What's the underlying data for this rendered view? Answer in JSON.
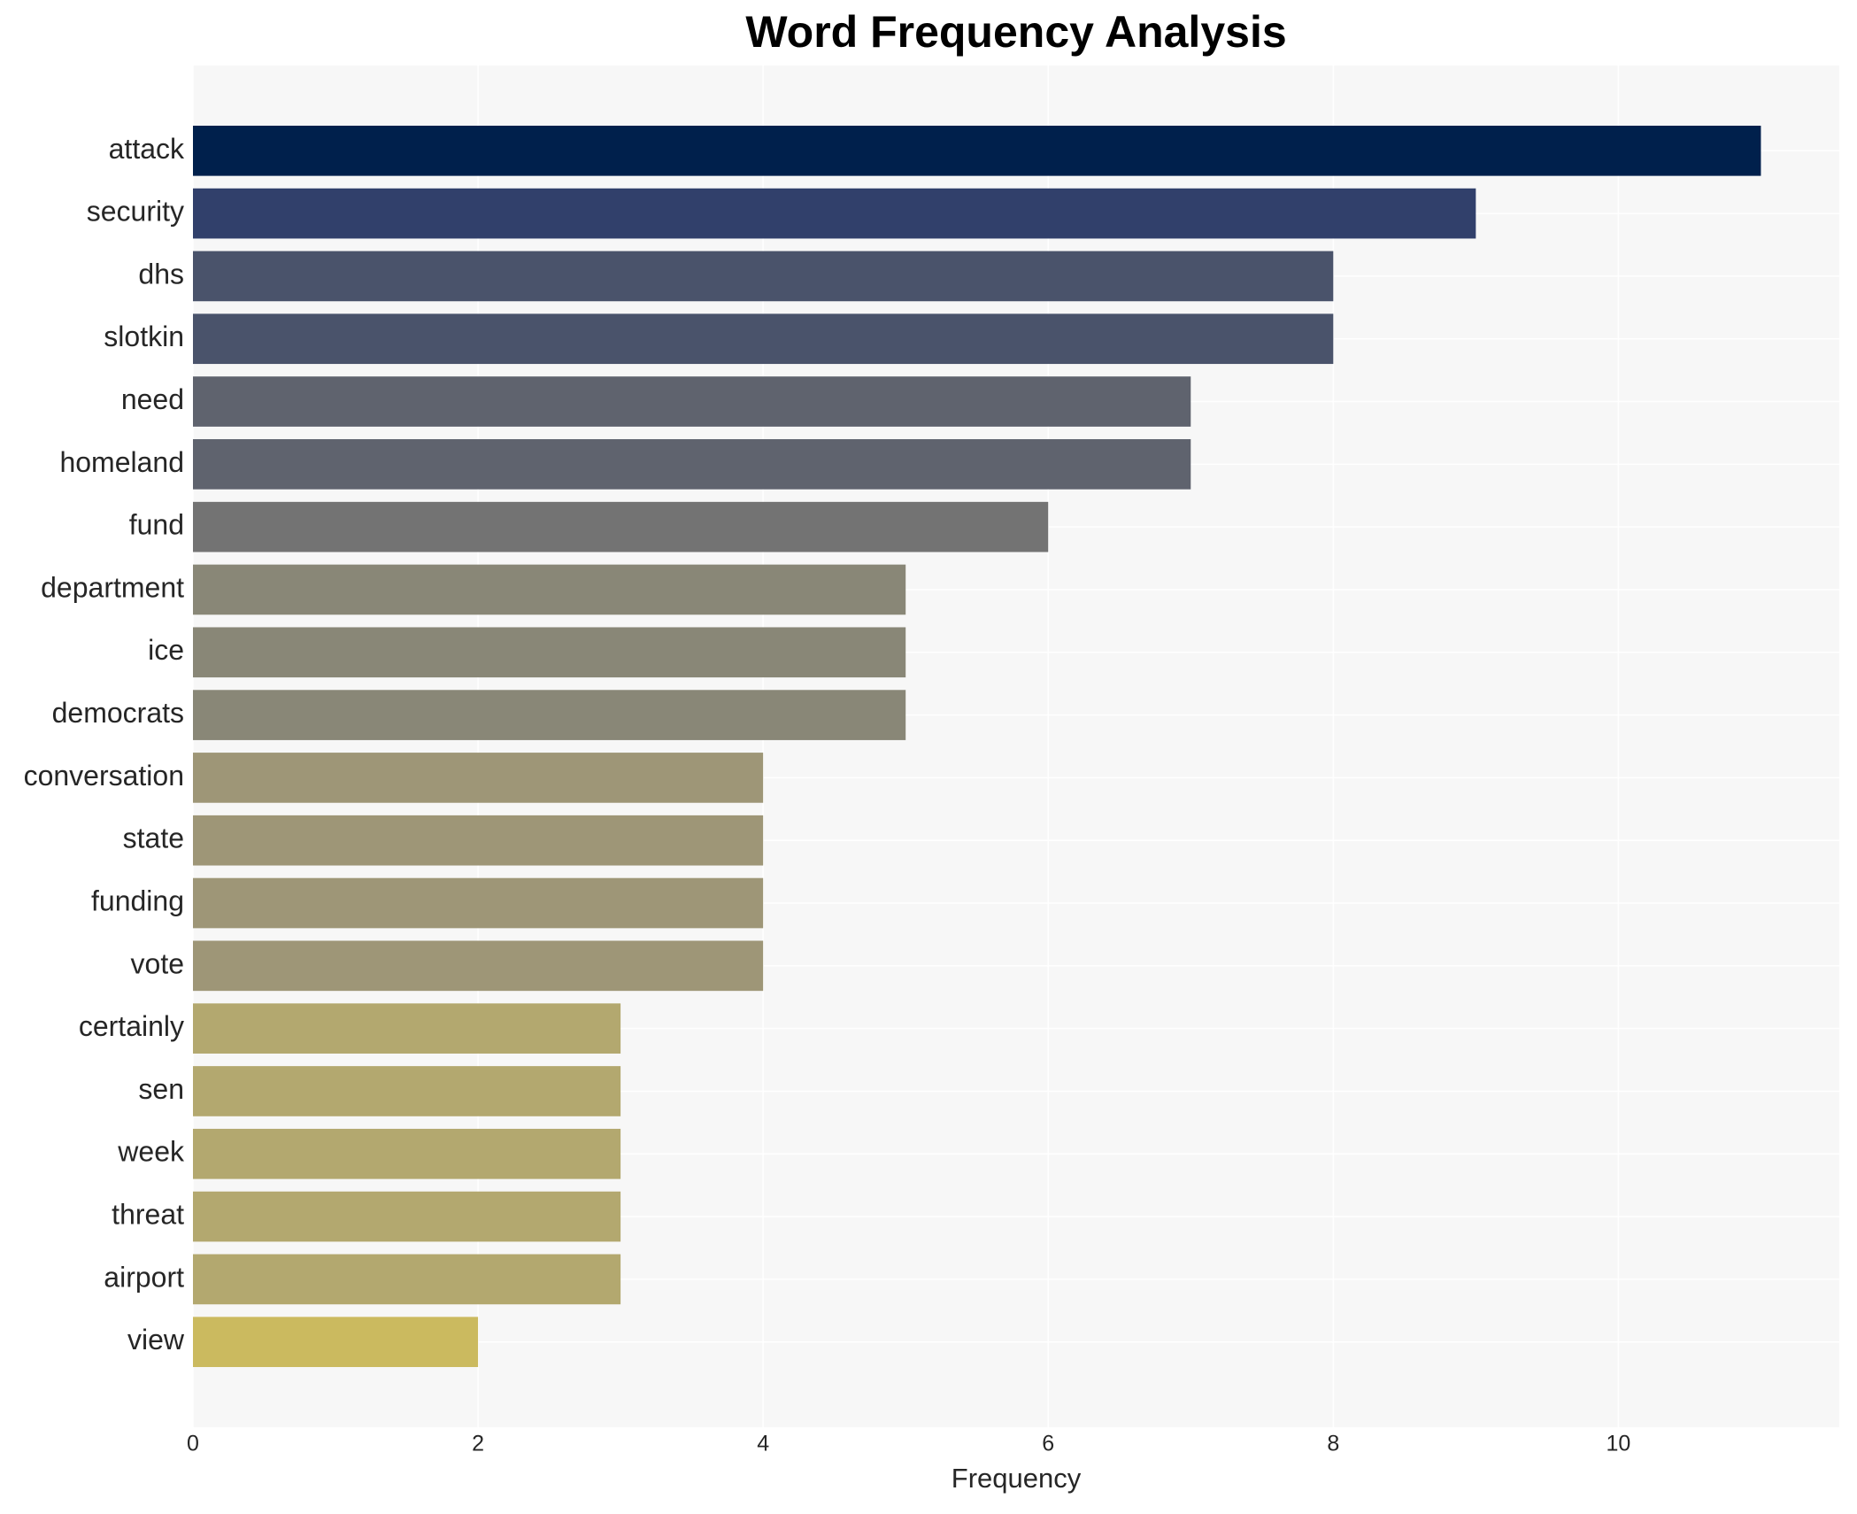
{
  "chart_data": {
    "type": "bar",
    "orientation": "horizontal",
    "title": "Word Frequency Analysis",
    "x_label": "Frequency",
    "categories": [
      "attack",
      "security",
      "dhs",
      "slotkin",
      "need",
      "homeland",
      "fund",
      "department",
      "ice",
      "democrats",
      "conversation",
      "state",
      "funding",
      "vote",
      "certainly",
      "sen",
      "week",
      "threat",
      "airport",
      "view"
    ],
    "values": [
      11,
      9,
      8,
      8,
      7,
      7,
      6,
      5,
      5,
      5,
      4,
      4,
      4,
      4,
      3,
      3,
      3,
      3,
      3,
      2
    ],
    "colors": [
      "#00204c",
      "#31406b",
      "#4a536b",
      "#4a536b",
      "#5f636e",
      "#5f636e",
      "#737373",
      "#898777",
      "#898777",
      "#898777",
      "#9e9677",
      "#9e9677",
      "#9e9677",
      "#9e9677",
      "#b3a86f",
      "#b3a86f",
      "#b3a86f",
      "#b3a86f",
      "#b3a86f",
      "#cbba5f"
    ],
    "xlim": [
      0,
      11.55
    ],
    "xticks": [
      0,
      2,
      4,
      6,
      8,
      10
    ],
    "grid": true
  }
}
